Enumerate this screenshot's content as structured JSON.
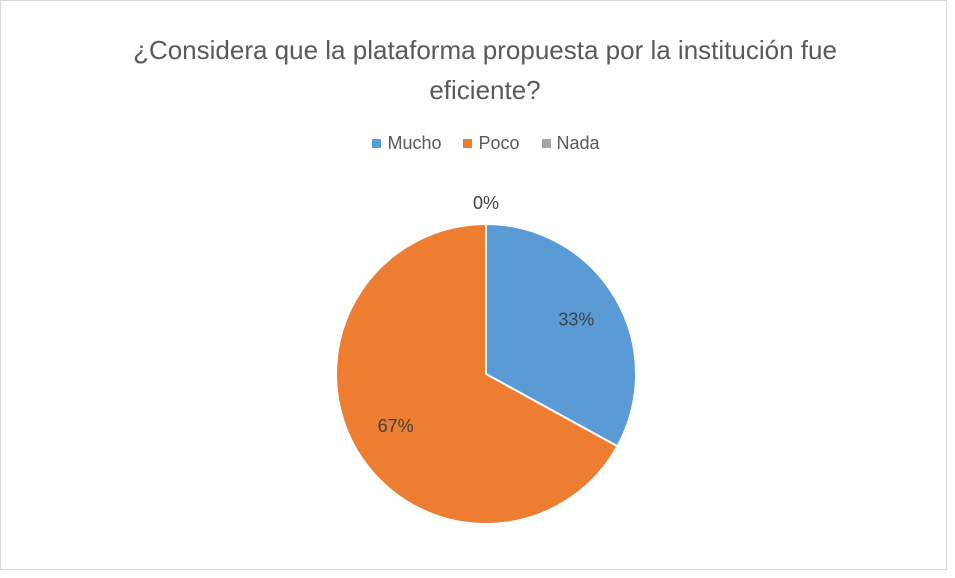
{
  "chart_data": {
    "type": "pie",
    "title": "¿Considera que la plataforma propuesta por la institución fue eficiente?",
    "categories": [
      "Mucho",
      "Poco",
      "Nada"
    ],
    "values": [
      33,
      67,
      0
    ],
    "value_labels": [
      "33%",
      "67%",
      "0%"
    ],
    "colors": [
      "#5b9bd5",
      "#ed7d31",
      "#a5a5a5"
    ],
    "legend": "top"
  }
}
